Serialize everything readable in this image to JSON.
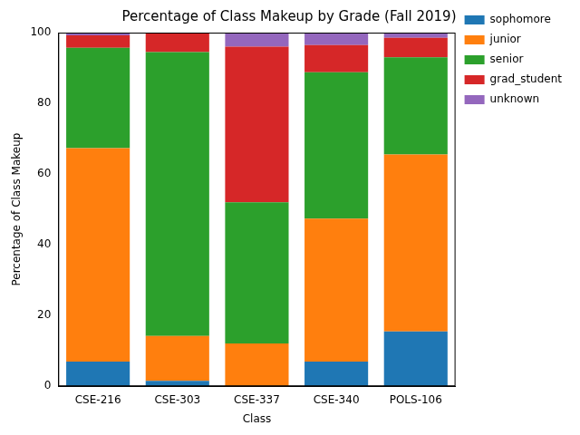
{
  "chart_data": {
    "type": "bar",
    "title": "Percentage of Class Makeup by Grade (Fall 2019)",
    "x_label": "Class",
    "y_label": "Percentage of Class Makeup",
    "categories": [
      "CSE-216",
      "CSE-303",
      "CSE-337",
      "CSE-340",
      "POLS-106"
    ],
    "series": [
      {
        "name": "sophomore",
        "color": "#1f77b4",
        "values": [
          7,
          1.5,
          0,
          7,
          15.5
        ]
      },
      {
        "name": "junior",
        "color": "#ff7f0e",
        "values": [
          60.3,
          12.7,
          12.1,
          40.4,
          50
        ]
      },
      {
        "name": "senior",
        "color": "#2ca02c",
        "values": [
          28.4,
          80.3,
          39.9,
          41.4,
          27.5
        ]
      },
      {
        "name": "grad_student",
        "color": "#d62728",
        "values": [
          3.5,
          5.5,
          44,
          7.7,
          5.5
        ]
      },
      {
        "name": "unknown",
        "color": "#9467bd",
        "values": [
          0.8,
          0,
          4,
          3.5,
          1.5
        ]
      }
    ],
    "stacked": true,
    "ylim": [
      0,
      100
    ],
    "yticks": [
      0,
      20,
      40,
      60,
      80,
      100
    ],
    "grid": false,
    "legend": "upper right"
  }
}
